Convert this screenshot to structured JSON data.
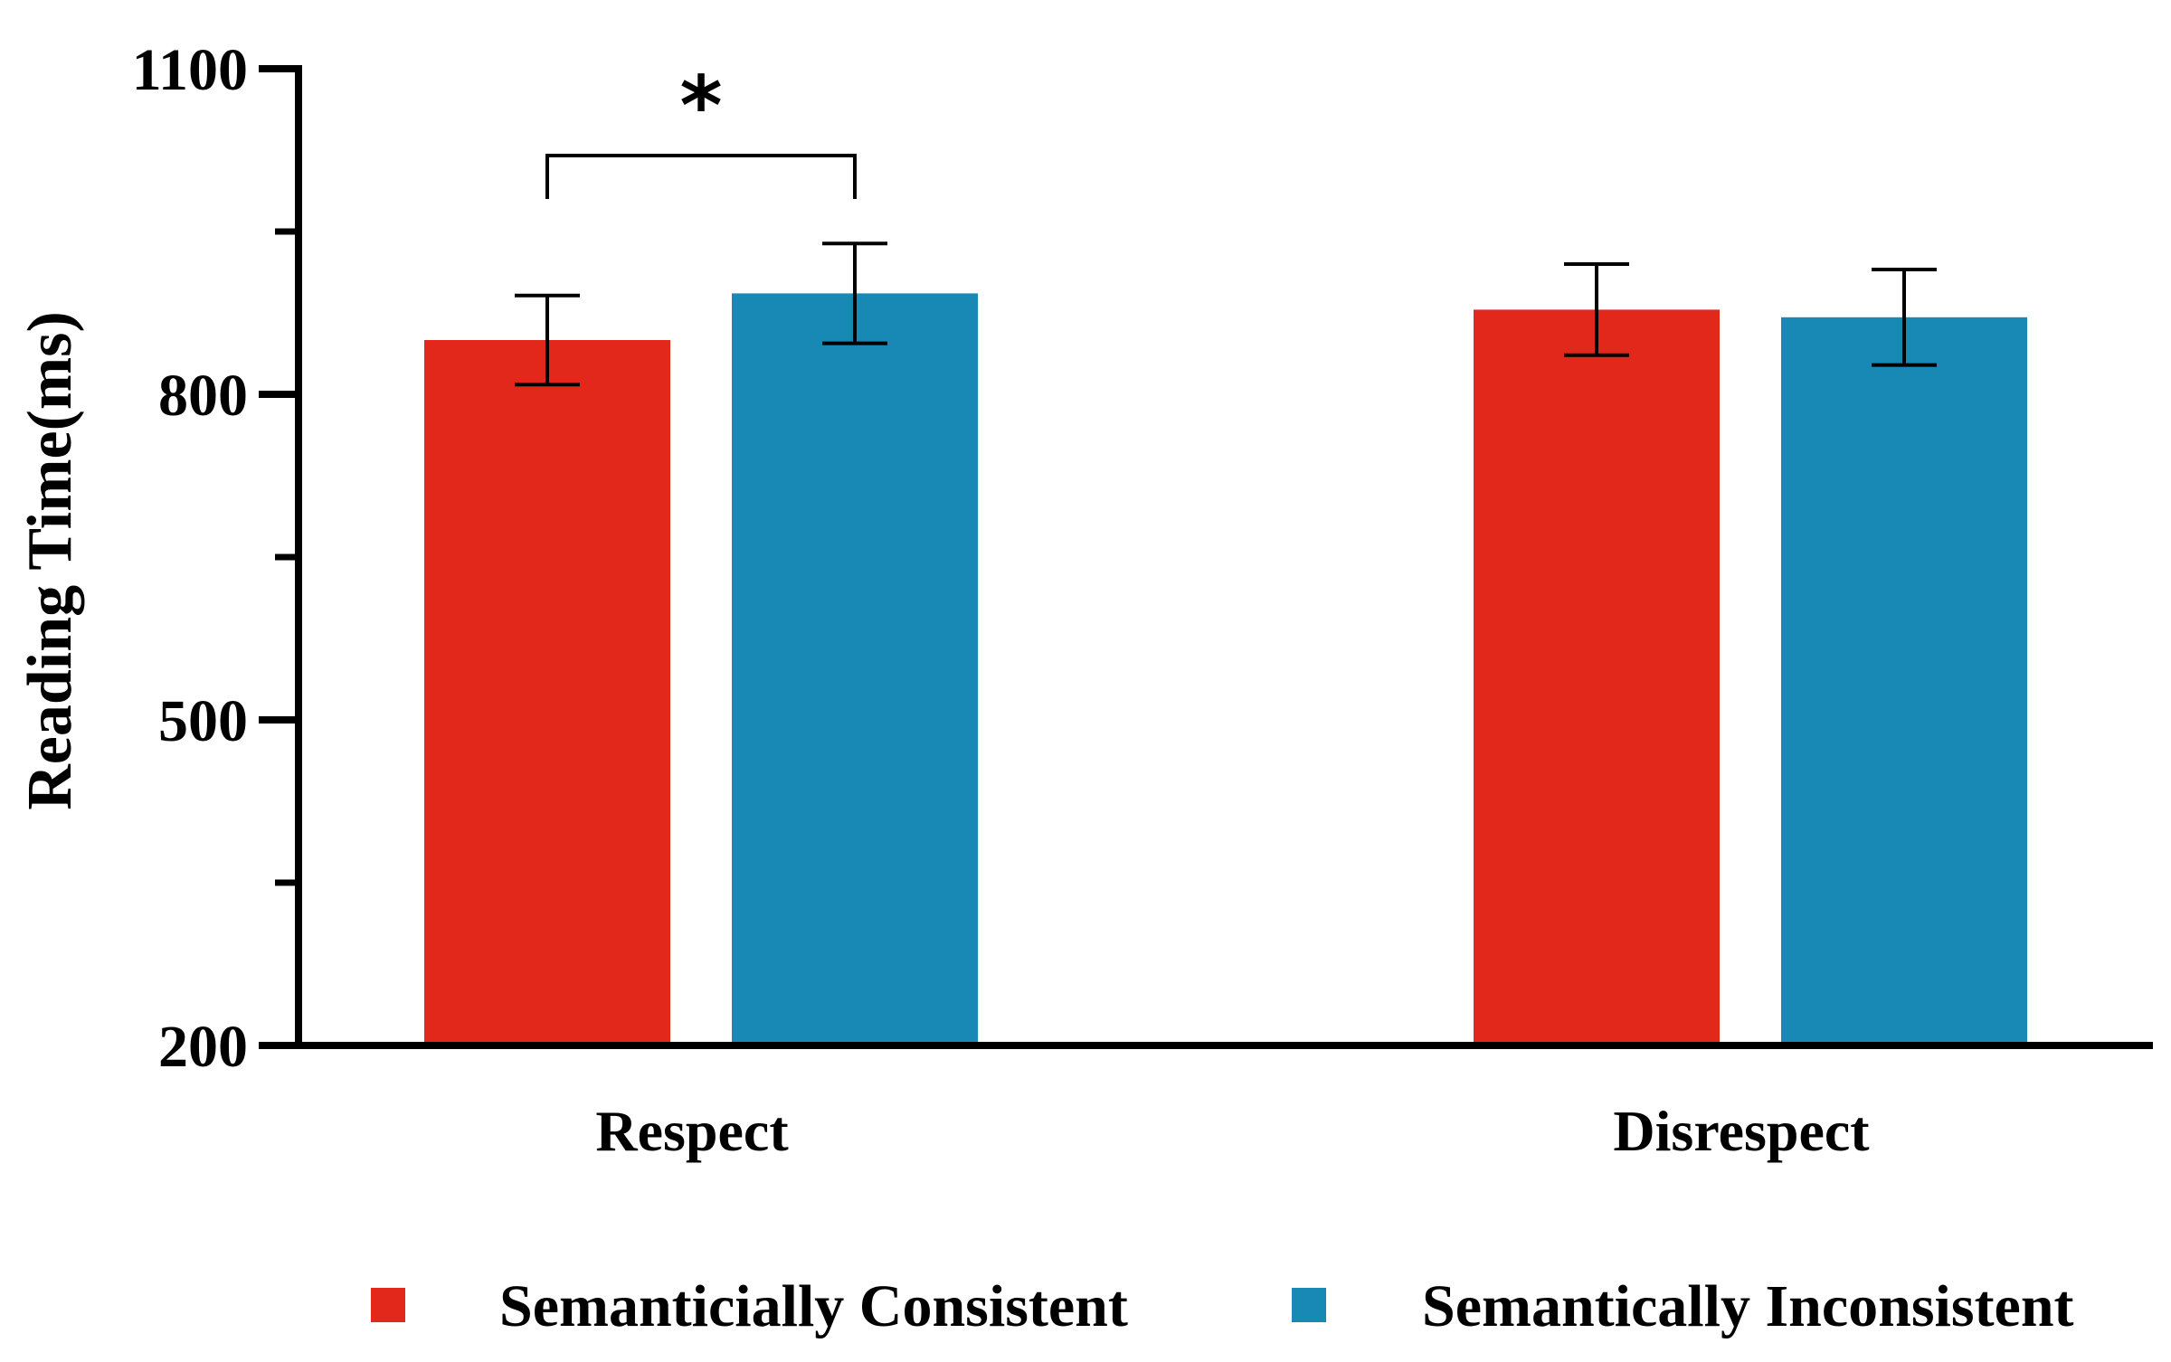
{
  "chart_data": {
    "type": "bar",
    "title": "",
    "xlabel": "",
    "ylabel": "Reading Time(ms)",
    "ylim": [
      200,
      1100
    ],
    "yticks": [
      200,
      500,
      800,
      1100
    ],
    "yminor_ticks": [
      350,
      650,
      950
    ],
    "grid": false,
    "categories": [
      "Respect",
      "Disrespect"
    ],
    "series": [
      {
        "name": "Semanticially Consistent",
        "color": "#e2271b",
        "values": [
          850,
          878
        ],
        "errors": [
          41,
          42
        ]
      },
      {
        "name": "Semantically Inconsistent",
        "color": "#1889b5",
        "values": [
          893,
          871
        ],
        "errors": [
          46,
          44
        ]
      }
    ],
    "significance": [
      {
        "category": "Respect",
        "label": "*"
      }
    ],
    "legend_position": "bottom"
  }
}
